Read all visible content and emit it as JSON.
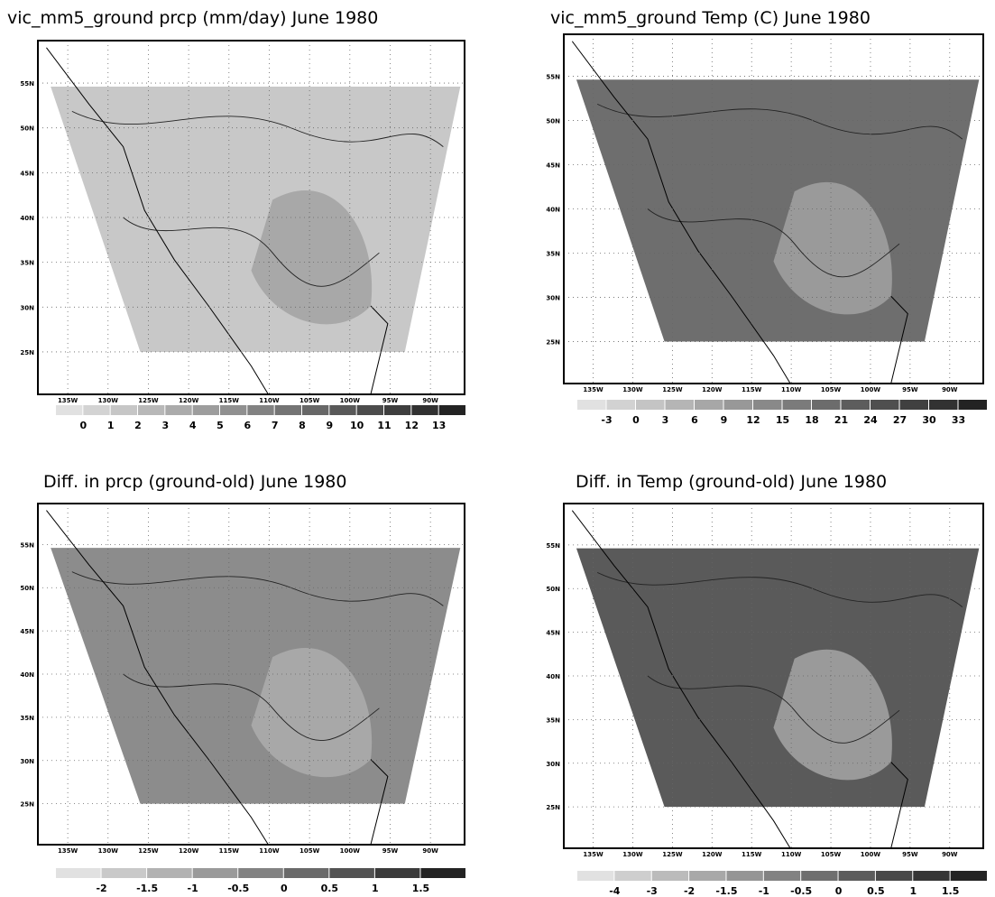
{
  "panels": [
    {
      "title": "vic_mm5_ground  prcp (mm/day)  June 1980",
      "lat_labels": [
        "55N",
        "50N",
        "45N",
        "40N",
        "35N",
        "30N",
        "25N"
      ],
      "lon_labels": [
        "135W",
        "130W",
        "125W",
        "120W",
        "115W",
        "110W",
        "105W",
        "100W",
        "95W",
        "90W"
      ],
      "colorbar_labels": [
        "0",
        "1",
        "2",
        "3",
        "4",
        "5",
        "6",
        "7",
        "8",
        "9",
        "10",
        "11",
        "12",
        "13"
      ]
    },
    {
      "title": "vic_mm5_ground Temp (C)  June 1980",
      "lat_labels": [
        "55N",
        "50N",
        "45N",
        "40N",
        "35N",
        "30N",
        "25N"
      ],
      "lon_labels": [
        "135W",
        "130W",
        "125W",
        "120W",
        "115W",
        "110W",
        "105W",
        "100W",
        "95W",
        "90W"
      ],
      "colorbar_labels": [
        "-3",
        "0",
        "3",
        "6",
        "9",
        "12",
        "15",
        "18",
        "21",
        "24",
        "27",
        "30",
        "33"
      ]
    },
    {
      "title": "Diff. in prcp (ground-old)     June 1980",
      "lat_labels": [
        "55N",
        "50N",
        "45N",
        "40N",
        "35N",
        "30N",
        "25N"
      ],
      "lon_labels": [
        "135W",
        "130W",
        "125W",
        "120W",
        "115W",
        "110W",
        "105W",
        "100W",
        "95W",
        "90W"
      ],
      "colorbar_labels": [
        "-2",
        "-1.5",
        "-1",
        "-0.5",
        "0",
        "0.5",
        "1",
        "1.5"
      ]
    },
    {
      "title": "Diff. in Temp (ground-old)  June 1980",
      "lat_labels": [
        "55N",
        "50N",
        "45N",
        "40N",
        "35N",
        "30N",
        "25N"
      ],
      "lon_labels": [
        "135W",
        "130W",
        "125W",
        "120W",
        "115W",
        "110W",
        "105W",
        "100W",
        "95W",
        "90W"
      ],
      "colorbar_labels": [
        "-4",
        "-3",
        "-2",
        "-1.5",
        "-1",
        "-0.5",
        "0",
        "0.5",
        "1",
        "1.5"
      ]
    }
  ]
}
